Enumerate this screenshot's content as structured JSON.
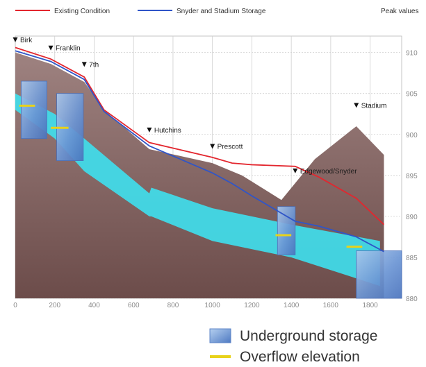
{
  "chart_data": {
    "type": "area",
    "title": "",
    "xlabel": "",
    "ylabel": "",
    "xlim": [
      0,
      1960
    ],
    "ylim": [
      880,
      912
    ],
    "x_ticks": [
      0,
      200,
      400,
      600,
      800,
      1000,
      1200,
      1400,
      1600,
      1800
    ],
    "y_ticks": [
      880,
      885,
      890,
      895,
      900,
      905,
      910
    ],
    "y_axis_note": "Peak values",
    "legend_top": [
      {
        "name": "Existing Condition",
        "color": "#e3262e"
      },
      {
        "name": "Snyder and Stadium Storage",
        "color": "#2f55c8"
      }
    ],
    "legend_bottom": [
      {
        "name": "Underground storage",
        "color": "#7da6d6"
      },
      {
        "name": "Overflow elevation",
        "color": "#e8d21a"
      }
    ],
    "series": [
      {
        "name": "Existing Condition",
        "color": "#e3262e",
        "x": [
          0,
          180,
          350,
          450,
          680,
          1000,
          1100,
          1200,
          1420,
          1540,
          1730,
          1870
        ],
        "y": [
          910.6,
          909.2,
          907.0,
          903.0,
          899.0,
          897.2,
          896.5,
          896.3,
          896.1,
          894.8,
          892.2,
          889.0
        ]
      },
      {
        "name": "Snyder and Stadium Storage",
        "color": "#2f55c8",
        "x": [
          0,
          180,
          350,
          450,
          680,
          1000,
          1100,
          1200,
          1420,
          1540,
          1730,
          1870
        ],
        "y": [
          910.2,
          908.9,
          906.7,
          902.8,
          898.6,
          895.3,
          894.0,
          892.5,
          889.4,
          888.8,
          887.5,
          885.7
        ]
      }
    ],
    "ground_surface": {
      "x": [
        0,
        180,
        350,
        450,
        680,
        1000,
        1150,
        1350,
        1520,
        1730,
        1870
      ],
      "y": [
        910.0,
        908.6,
        906.4,
        903.0,
        898.2,
        896.5,
        895.0,
        892.0,
        897.0,
        901.0,
        897.5
      ]
    },
    "pipe_band": {
      "x": [
        0,
        200,
        350,
        680,
        690,
        1000,
        1400,
        1850
      ],
      "top": [
        905.0,
        902.5,
        899.5,
        892.8,
        893.5,
        891.0,
        889.0,
        887.0
      ],
      "bottom": [
        903.0,
        899.5,
        895.5,
        890.0,
        890.0,
        887.0,
        885.0,
        881.5
      ]
    },
    "storage": [
      {
        "x0": 30,
        "x1": 160,
        "ytop": 906.5,
        "ybot": 899.5
      },
      {
        "x0": 210,
        "x1": 345,
        "ytop": 905.0,
        "ybot": 896.8
      },
      {
        "x0": 1330,
        "x1": 1420,
        "ytop": 891.2,
        "ybot": 885.3
      },
      {
        "x0": 1730,
        "x1": 1990,
        "ytop": 885.8,
        "ybot": 880.0
      }
    ],
    "overflow": [
      {
        "x0": 20,
        "x1": 100,
        "y": 903.5
      },
      {
        "x0": 180,
        "x1": 270,
        "y": 900.8
      },
      {
        "x0": 1320,
        "x1": 1400,
        "y": 887.7
      },
      {
        "x0": 1680,
        "x1": 1760,
        "y": 886.3
      }
    ],
    "stations": [
      {
        "label": "Birk",
        "x": 0,
        "y": 911.5
      },
      {
        "label": "Franklin",
        "x": 180,
        "y": 910.5
      },
      {
        "label": "7th",
        "x": 350,
        "y": 908.5
      },
      {
        "label": "Hutchins",
        "x": 680,
        "y": 900.5
      },
      {
        "label": "Prescott",
        "x": 1000,
        "y": 898.5
      },
      {
        "label": "Edgewood/Snyder",
        "x": 1420,
        "y": 895.5
      },
      {
        "label": "Stadium",
        "x": 1730,
        "y": 903.5
      }
    ]
  }
}
